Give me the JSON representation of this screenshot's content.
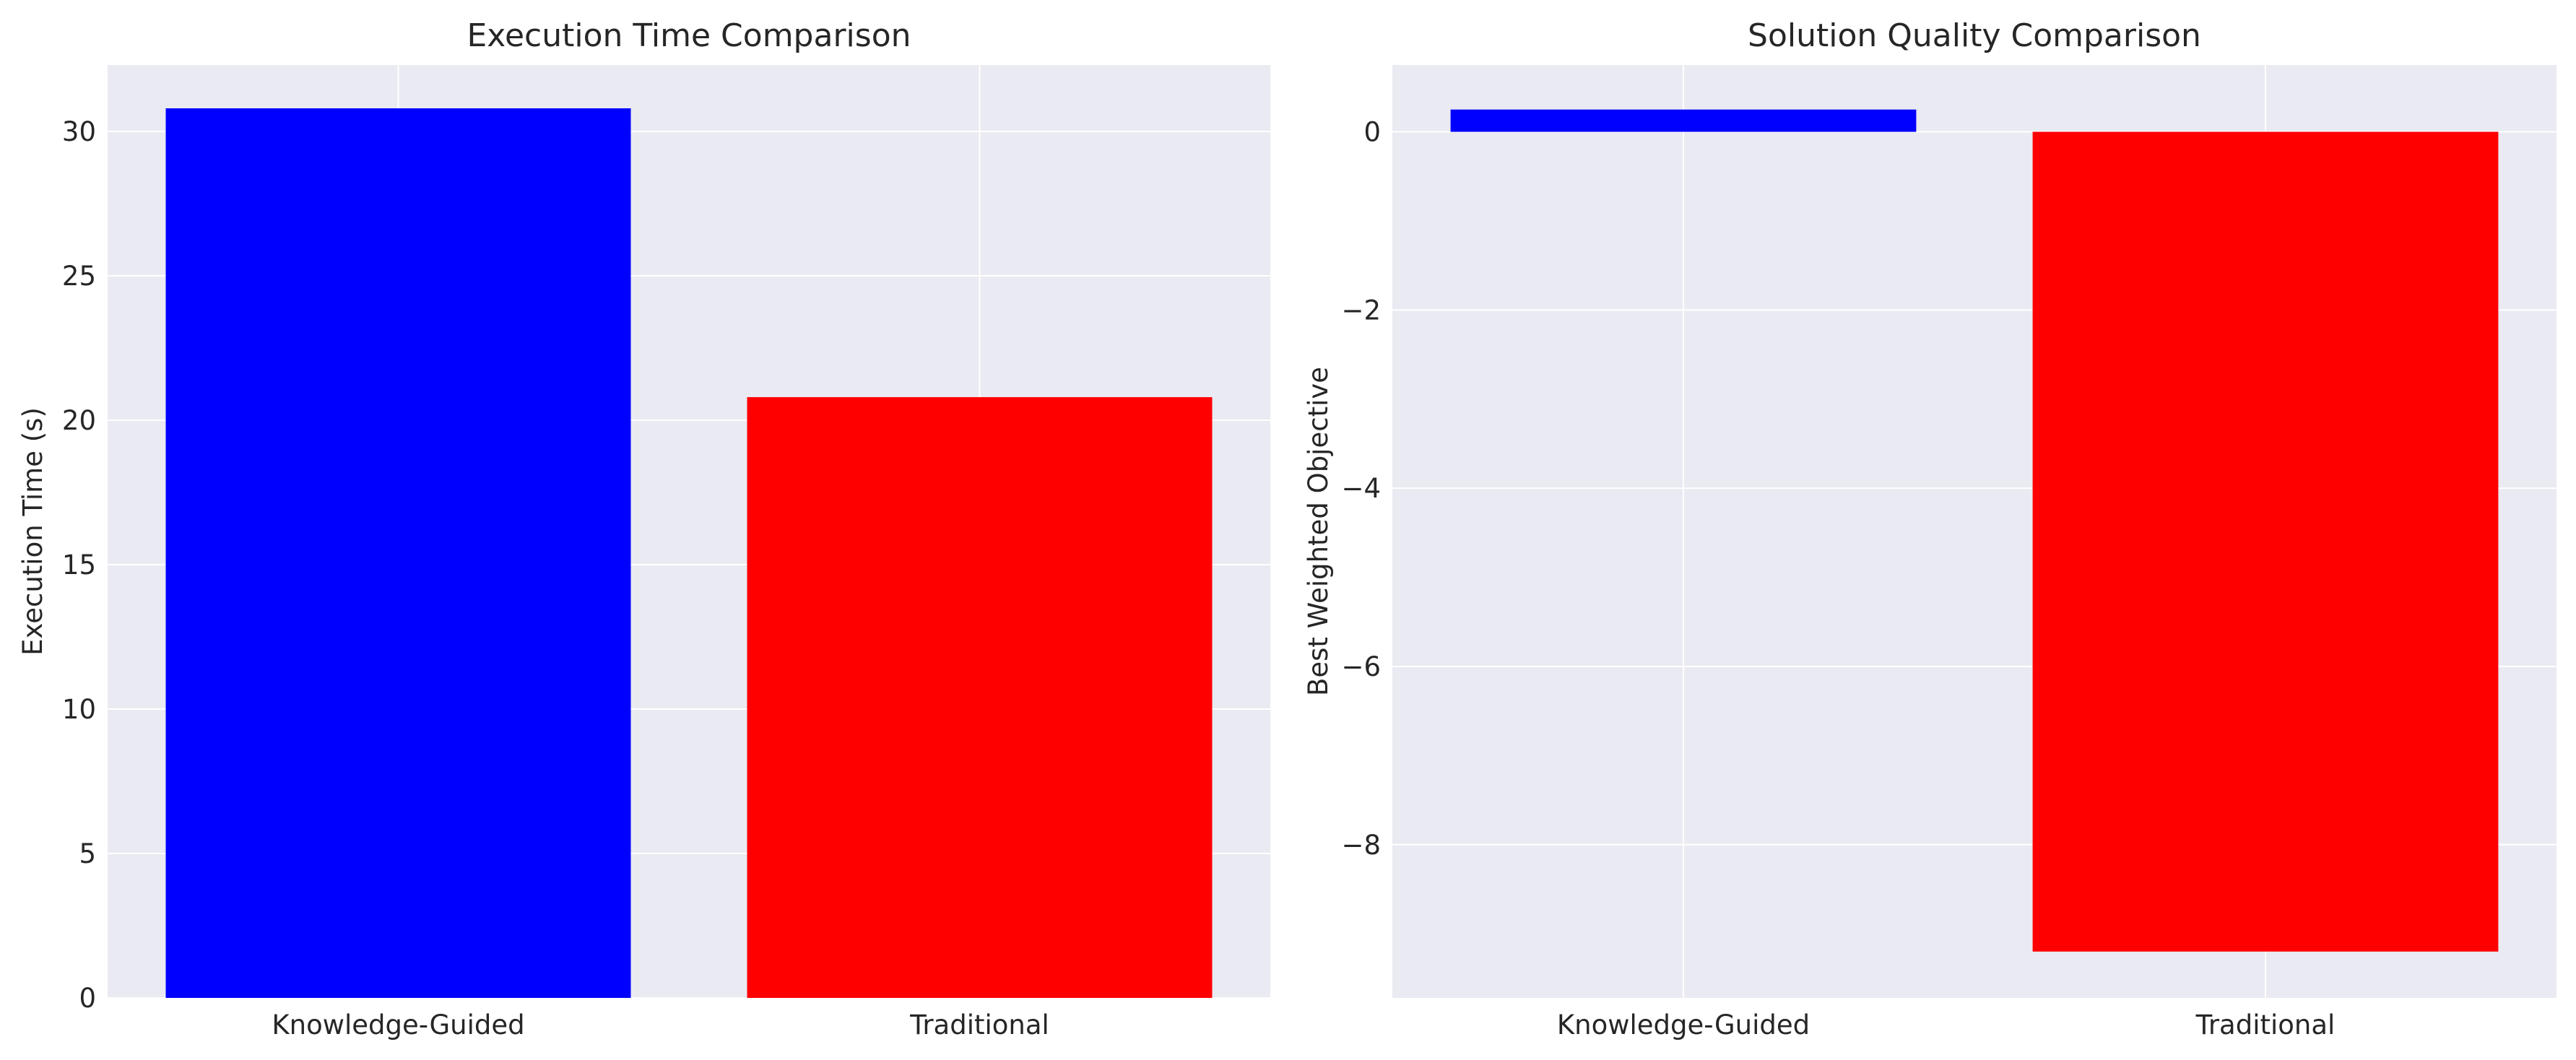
{
  "chart_data": [
    {
      "type": "bar",
      "title": "Execution Time Comparison",
      "xlabel": "",
      "ylabel": "Execution Time (s)",
      "categories": [
        "Knowledge-Guided",
        "Traditional"
      ],
      "values": [
        30.8,
        20.8
      ],
      "colors": [
        "#0000ff",
        "#ff0000"
      ],
      "ylim": [
        0,
        32.3
      ],
      "yticks": [
        0,
        5,
        10,
        15,
        20,
        25,
        30
      ],
      "grid": true
    },
    {
      "type": "bar",
      "title": "Solution Quality Comparison",
      "xlabel": "",
      "ylabel": "Best Weighted Objective",
      "categories": [
        "Knowledge-Guided",
        "Traditional"
      ],
      "values": [
        0.25,
        -9.2
      ],
      "colors": [
        "#0000ff",
        "#ff0000"
      ],
      "ylim": [
        -9.72,
        0.75
      ],
      "yticks": [
        0,
        -2,
        -4,
        -6,
        -8
      ],
      "grid": true
    }
  ]
}
